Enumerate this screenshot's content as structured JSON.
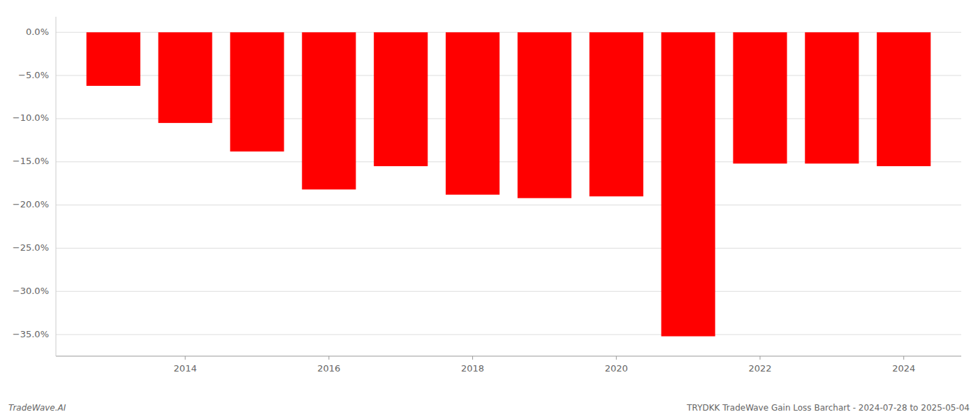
{
  "chart_data": {
    "type": "bar",
    "title": "TRYDKK TradeWave Gain Loss Barchart - 2024-07-28 to 2025-05-04",
    "annotations": [
      "TradeWave.AI"
    ],
    "x": [
      2013,
      2014,
      2015,
      2016,
      2017,
      2018,
      2019,
      2020,
      2021,
      2022,
      2023,
      2024
    ],
    "values": [
      -6.2,
      -10.5,
      -13.8,
      -18.2,
      -15.5,
      -18.8,
      -19.2,
      -19.0,
      -35.2,
      -15.2,
      -15.2,
      -15.5
    ],
    "color": "#ff0000",
    "xlim": [
      2012.2,
      2024.8
    ],
    "xticks": [
      2014,
      2016,
      2018,
      2020,
      2022,
      2024
    ],
    "ylim": [
      -37.5,
      1.8
    ],
    "yticks": [
      {
        "value": 0.0,
        "label": "0.0%"
      },
      {
        "value": -5.0,
        "label": "−5.0%"
      },
      {
        "value": -10.0,
        "label": "−10.0%"
      },
      {
        "value": -15.0,
        "label": "−15.0%"
      },
      {
        "value": -20.0,
        "label": "−20.0%"
      },
      {
        "value": -25.0,
        "label": "−25.0%"
      },
      {
        "value": -30.0,
        "label": "−30.0%"
      },
      {
        "value": -35.0,
        "label": "−35.0%"
      }
    ],
    "grid": true
  }
}
